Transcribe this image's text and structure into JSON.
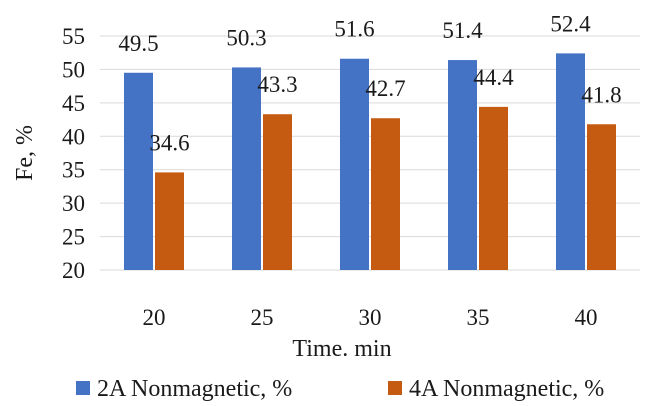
{
  "chart_data": {
    "type": "bar",
    "xlabel": "Time. min",
    "ylabel": "Fe, %",
    "categories": [
      "20",
      "25",
      "30",
      "35",
      "40"
    ],
    "ylim": [
      20,
      55
    ],
    "yticks": [
      "20",
      "25",
      "30",
      "35",
      "40",
      "45",
      "50",
      "55"
    ],
    "grid": true,
    "legend_position": "bottom",
    "series": [
      {
        "name": "2A Nonmagnetic, %",
        "color": "#4472c4",
        "values": [
          49.5,
          50.3,
          51.6,
          51.4,
          52.4
        ],
        "labels": [
          "49.5",
          "50.3",
          "51.6",
          "51.4",
          "52.4"
        ]
      },
      {
        "name": "4A Nonmagnetic, %",
        "color": "#c55a11",
        "values": [
          34.6,
          43.3,
          42.7,
          44.4,
          41.8
        ],
        "labels": [
          "34.6",
          "43.3",
          "42.7",
          "44.4",
          "41.8"
        ]
      }
    ]
  }
}
